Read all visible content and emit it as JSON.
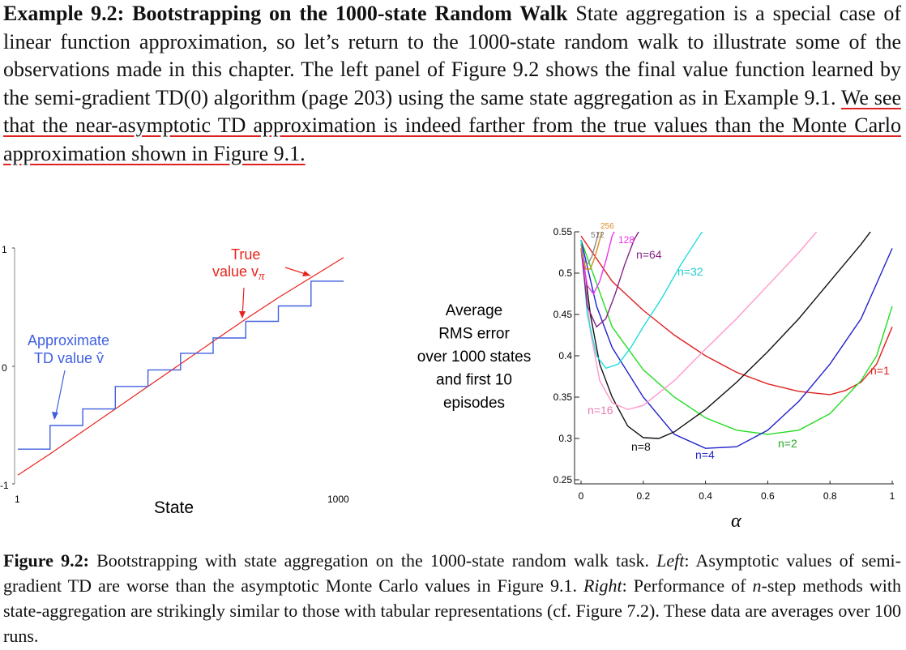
{
  "paragraph": {
    "heading": "Example 9.2: Bootstrapping on the 1000-state Random Walk",
    "text_a": " State aggregation is a special case of linear function approximation, so let’s return to the 1000-state random walk to illustrate some of the observations made in this chapter. The left panel of Figure 9.2 shows the final value function learned by the semi-gradient TD(0) algorithm (page 203) using the same state aggregation as in Example 9.1. ",
    "text_b": "We see that the near-asymptotic TD approximation is indeed farther from the true values than the Monte Carlo approximation shown in Figure 9.1."
  },
  "left_panel": {
    "xlabel": "State",
    "x_tick_start": "1",
    "x_tick_end": "1000",
    "y_tick_top": "1",
    "y_tick_mid": "0",
    "y_tick_bottom": "-1",
    "true_label_1": "True",
    "true_label_2": "value v",
    "true_label_sub": "π",
    "approx_label_1": "Approximate",
    "approx_label_2": "TD value v̂",
    "true_color": "#e8231c",
    "approx_color": "#4060e0"
  },
  "right_panel": {
    "ylabel_lines": [
      "Average",
      "RMS error",
      "over 1000 states",
      "and first 10",
      "episodes"
    ],
    "xlabel": "α",
    "x_ticks": [
      "0",
      "0.2",
      "0.4",
      "0.6",
      "0.8",
      "1"
    ],
    "y_ticks": [
      "0.25",
      "0.3",
      "0.35",
      "0.4",
      "0.45",
      "0.5",
      "0.55"
    ]
  },
  "chart_data": [
    {
      "type": "line",
      "panel": "left",
      "xlabel": "State",
      "x_ticks": [
        "1",
        "1000"
      ],
      "y_ticks": [
        "-1",
        "0",
        "1"
      ],
      "xlim": [
        1,
        1000
      ],
      "ylim": [
        -1,
        1
      ],
      "series": [
        {
          "name": "True value vπ",
          "color": "#e8231c",
          "x": [
            1,
            100,
            200,
            300,
            400,
            500,
            600,
            700,
            800,
            900,
            1000
          ],
          "y": [
            -0.92,
            -0.74,
            -0.55,
            -0.36,
            -0.17,
            0.02,
            0.21,
            0.4,
            0.58,
            0.75,
            0.92
          ]
        },
        {
          "name": "Approximate TD value v̂",
          "color": "#4060e0",
          "step": true,
          "x": [
            1,
            100,
            200,
            300,
            400,
            500,
            600,
            700,
            800,
            900,
            1000
          ],
          "y": [
            -0.7,
            -0.5,
            -0.36,
            -0.17,
            -0.03,
            0.11,
            0.24,
            0.38,
            0.51,
            0.72,
            0.72
          ]
        }
      ]
    },
    {
      "type": "line",
      "panel": "right",
      "xlabel": "α",
      "ylabel": "Average RMS error over 1000 states and first 10 episodes",
      "xlim": [
        0,
        1
      ],
      "ylim": [
        0.25,
        0.55
      ],
      "x_ticks": [
        0,
        0.2,
        0.4,
        0.6,
        0.8,
        1
      ],
      "y_ticks": [
        0.25,
        0.3,
        0.35,
        0.4,
        0.45,
        0.5,
        0.55
      ],
      "series": [
        {
          "name": "n=1",
          "label": "n=1",
          "color": "#e02020",
          "x": [
            0,
            0.1,
            0.2,
            0.3,
            0.4,
            0.5,
            0.6,
            0.7,
            0.8,
            0.85,
            0.9,
            0.95,
            1.0
          ],
          "y": [
            0.545,
            0.49,
            0.455,
            0.425,
            0.4,
            0.38,
            0.366,
            0.357,
            0.353,
            0.358,
            0.368,
            0.39,
            0.435
          ]
        },
        {
          "name": "n=2",
          "label": "n=2",
          "color": "#22dd22",
          "x": [
            0,
            0.1,
            0.2,
            0.3,
            0.4,
            0.5,
            0.6,
            0.7,
            0.8,
            0.9,
            0.95,
            1.0
          ],
          "y": [
            0.54,
            0.435,
            0.383,
            0.35,
            0.325,
            0.31,
            0.305,
            0.31,
            0.33,
            0.37,
            0.4,
            0.46
          ]
        },
        {
          "name": "n=4",
          "label": "n=4",
          "color": "#2222cc",
          "x": [
            0,
            0.05,
            0.1,
            0.2,
            0.3,
            0.4,
            0.5,
            0.6,
            0.7,
            0.8,
            0.9,
            1.0
          ],
          "y": [
            0.54,
            0.46,
            0.41,
            0.35,
            0.305,
            0.288,
            0.29,
            0.31,
            0.345,
            0.39,
            0.445,
            0.53
          ]
        },
        {
          "name": "n=8",
          "label": "n=8",
          "color": "#111111",
          "x": [
            0,
            0.03,
            0.06,
            0.1,
            0.15,
            0.2,
            0.25,
            0.3,
            0.4,
            0.5,
            0.6,
            0.7,
            0.8,
            0.9,
            0.95
          ],
          "y": [
            0.54,
            0.45,
            0.39,
            0.35,
            0.315,
            0.301,
            0.3,
            0.308,
            0.335,
            0.368,
            0.405,
            0.445,
            0.49,
            0.535,
            0.56
          ]
        },
        {
          "name": "n=16",
          "label": "n=16",
          "color": "#ff99cc",
          "x": [
            0,
            0.03,
            0.06,
            0.1,
            0.15,
            0.2,
            0.3,
            0.4,
            0.5,
            0.6,
            0.7,
            0.78
          ],
          "y": [
            0.54,
            0.43,
            0.37,
            0.343,
            0.335,
            0.34,
            0.37,
            0.408,
            0.445,
            0.485,
            0.525,
            0.56
          ]
        },
        {
          "name": "n=32",
          "label": "n=32",
          "color": "#22dddd",
          "x": [
            0,
            0.02,
            0.05,
            0.08,
            0.12,
            0.16,
            0.2,
            0.26,
            0.32,
            0.38,
            0.42
          ],
          "y": [
            0.54,
            0.45,
            0.4,
            0.385,
            0.39,
            0.41,
            0.435,
            0.47,
            0.51,
            0.545,
            0.565
          ]
        },
        {
          "name": "n=64",
          "label": "n=64",
          "color": "#882288",
          "x": [
            0,
            0.02,
            0.05,
            0.08,
            0.11,
            0.14,
            0.17,
            0.2
          ],
          "y": [
            0.53,
            0.46,
            0.435,
            0.445,
            0.475,
            0.51,
            0.54,
            0.56
          ]
        },
        {
          "name": "n=128",
          "label": "128",
          "color": "#ee33ee",
          "x": [
            0,
            0.02,
            0.04,
            0.06,
            0.08,
            0.1,
            0.12
          ],
          "y": [
            0.53,
            0.485,
            0.475,
            0.49,
            0.515,
            0.545,
            0.56
          ]
        },
        {
          "name": "n=256",
          "label": "256",
          "color": "#dd8822",
          "x": [
            0,
            0.015,
            0.03,
            0.045,
            0.06,
            0.075
          ],
          "y": [
            0.53,
            0.505,
            0.505,
            0.52,
            0.54,
            0.56
          ]
        },
        {
          "name": "n=512",
          "label": "512",
          "color": "#888888",
          "x": [
            0,
            0.01,
            0.02,
            0.035,
            0.05,
            0.065
          ],
          "y": [
            0.535,
            0.515,
            0.51,
            0.52,
            0.54,
            0.56
          ]
        }
      ]
    }
  ],
  "caption": {
    "label": "Figure 9.2:",
    "t1": " Bootstrapping with state aggregation on the 1000-state random walk task. ",
    "left_word": "Left",
    "t2": ": Asymptotic values of semi-gradient TD are worse than the asymptotic Monte Carlo values in Figure 9.1. ",
    "right_word": "Right",
    "t3": ": Performance of ",
    "n_var": "n",
    "t4": "-step methods with state-aggregation are strikingly similar to those with tabular representations (cf. Figure 7.2). These data are averages over 100 runs."
  }
}
